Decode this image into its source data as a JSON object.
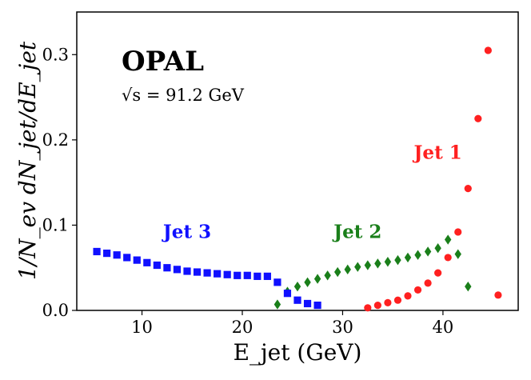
{
  "chart_data": {
    "type": "scatter",
    "title": "OPAL",
    "subtitle": "√s = 91.2 GeV",
    "xlabel": "E_jet (GeV)",
    "ylabel": "1/N_ev dN_jet/dE_jet",
    "xlim": [
      3.5,
      47.5
    ],
    "ylim": [
      0.0,
      0.35
    ],
    "xticks": [
      "10",
      "20",
      "30",
      "40"
    ],
    "xtick_values": [
      10,
      20,
      30,
      40
    ],
    "yticks": [
      "0.0",
      "0.1",
      "0.2",
      "0.3"
    ],
    "ytick_values": [
      0.0,
      0.1,
      0.2,
      0.3
    ],
    "grid": false,
    "series": [
      {
        "name": "Jet 1",
        "color": "#ff2020",
        "marker": "circle",
        "x": [
          32.5,
          33.5,
          34.5,
          35.5,
          36.5,
          37.5,
          38.5,
          39.5,
          40.5,
          41.5,
          42.5,
          43.5,
          44.5,
          45.5
        ],
        "y": [
          0.003,
          0.006,
          0.009,
          0.012,
          0.017,
          0.024,
          0.032,
          0.044,
          0.062,
          0.092,
          0.143,
          0.225,
          0.305,
          0.018
        ]
      },
      {
        "name": "Jet 2",
        "color": "#1a7f1a",
        "marker": "diamond",
        "x": [
          23.5,
          24.5,
          25.5,
          26.5,
          27.5,
          28.5,
          29.5,
          30.5,
          31.5,
          32.5,
          33.5,
          34.5,
          35.5,
          36.5,
          37.5,
          38.5,
          39.5,
          40.5,
          41.5,
          42.5
        ],
        "y": [
          0.007,
          0.022,
          0.028,
          0.033,
          0.037,
          0.041,
          0.045,
          0.048,
          0.051,
          0.053,
          0.055,
          0.057,
          0.059,
          0.062,
          0.065,
          0.069,
          0.073,
          0.083,
          0.066,
          0.028
        ]
      },
      {
        "name": "Jet 3",
        "color": "#1010ff",
        "marker": "square",
        "x": [
          5.5,
          6.5,
          7.5,
          8.5,
          9.5,
          10.5,
          11.5,
          12.5,
          13.5,
          14.5,
          15.5,
          16.5,
          17.5,
          18.5,
          19.5,
          20.5,
          21.5,
          22.5,
          23.5,
          24.5,
          25.5,
          26.5,
          27.5
        ],
        "y": [
          0.069,
          0.067,
          0.065,
          0.062,
          0.059,
          0.056,
          0.053,
          0.05,
          0.048,
          0.046,
          0.045,
          0.044,
          0.043,
          0.042,
          0.041,
          0.041,
          0.04,
          0.04,
          0.033,
          0.02,
          0.012,
          0.008,
          0.006
        ]
      }
    ],
    "annotations": [
      {
        "text": "Jet 1",
        "x": 39.5,
        "y": 0.178,
        "color": "#ff2020"
      },
      {
        "text": "Jet 2",
        "x": 31.5,
        "y": 0.085,
        "color": "#1a7f1a"
      },
      {
        "text": "Jet 3",
        "x": 14.5,
        "y": 0.085,
        "color": "#1010ff"
      }
    ]
  }
}
